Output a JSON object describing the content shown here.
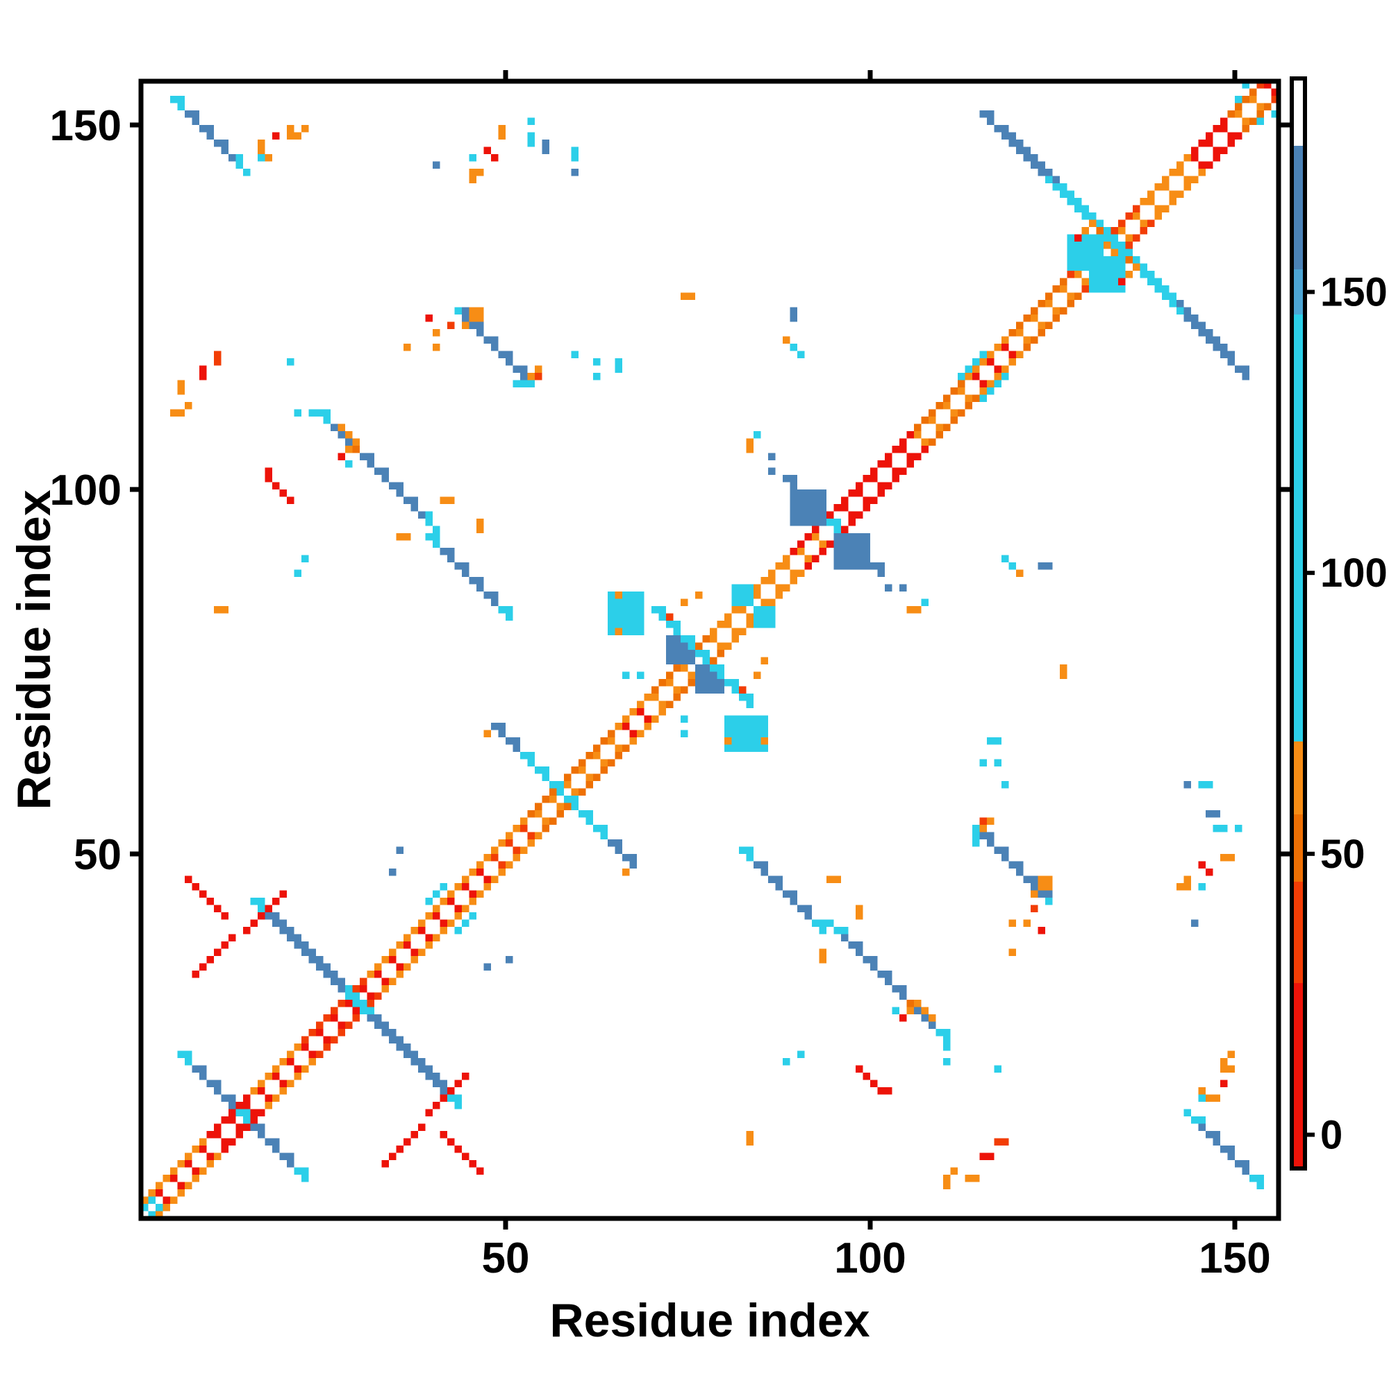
{
  "chart_data": {
    "type": "heatmap",
    "subtype": "protein-residue-contact-map",
    "title": "",
    "xlabel": "Residue index",
    "ylabel": "Residue index",
    "axis_range": [
      0,
      156
    ],
    "x_ticks": [
      50,
      100,
      150
    ],
    "y_ticks": [
      50,
      100,
      150
    ],
    "grid": false,
    "symmetric": true,
    "background": "#ffffff",
    "palette": {
      "R": "#ed1309",
      "RO": "#f23d05",
      "O": "#f78d15",
      "DO": "#ee7004",
      "C": "#2ccfe9",
      "S": "#4da5d4",
      "B": "#4b82b6",
      "W": "#ffffff"
    },
    "colorbar": {
      "range": [
        -6,
        188
      ],
      "ticks": [
        0,
        50,
        100,
        150
      ],
      "segments": [
        {
          "from": -6,
          "to": 27,
          "color": "#ed1309"
        },
        {
          "from": 27,
          "to": 45,
          "color": "#f23d05"
        },
        {
          "from": 45,
          "to": 57,
          "color": "#ee7004"
        },
        {
          "from": 57,
          "to": 70,
          "color": "#f78d15"
        },
        {
          "from": 70,
          "to": 146,
          "color": "#2ccfe9"
        },
        {
          "from": 146,
          "to": 154,
          "color": "#4da5d4"
        },
        {
          "from": 154,
          "to": 176,
          "color": "#4b82b6"
        },
        {
          "from": 176,
          "to": 188,
          "color": "#ffffff"
        }
      ]
    },
    "diagonal_segments": [
      {
        "from": 0,
        "to": 9,
        "inner": "R",
        "outer": "O"
      },
      {
        "from": 9,
        "to": 15,
        "inner": "R",
        "outer": "R"
      },
      {
        "from": 15,
        "to": 22,
        "inner": "R",
        "outer": "O"
      },
      {
        "from": 22,
        "to": 31,
        "inner": "R",
        "outer": "RO"
      },
      {
        "from": 31,
        "to": 47,
        "inner": "R",
        "outer": "O"
      },
      {
        "from": 47,
        "to": 53,
        "inner": "RO",
        "outer": "O"
      },
      {
        "from": 53,
        "to": 65,
        "inner": "O",
        "outer": "DO"
      },
      {
        "from": 65,
        "to": 70,
        "inner": "R",
        "outer": "O"
      },
      {
        "from": 70,
        "to": 78,
        "inner": "O",
        "outer": "DO"
      },
      {
        "from": 78,
        "to": 89,
        "inner": "O",
        "outer": "O"
      },
      {
        "from": 89,
        "to": 95,
        "inner": "O",
        "outer": "R"
      },
      {
        "from": 95,
        "to": 106,
        "inner": "R",
        "outer": "R"
      },
      {
        "from": 106,
        "to": 113,
        "inner": "O",
        "outer": "DO"
      },
      {
        "from": 113,
        "to": 119,
        "inner": "R",
        "outer": "O"
      },
      {
        "from": 119,
        "to": 127,
        "inner": "O",
        "outer": "DO"
      },
      {
        "from": 127,
        "to": 137,
        "inner": "O",
        "outer": "RO"
      },
      {
        "from": 137,
        "to": 144,
        "inner": "O",
        "outer": "O"
      },
      {
        "from": 144,
        "to": 149,
        "inner": "R",
        "outer": "R"
      },
      {
        "from": 149,
        "to": 153,
        "inner": "O",
        "outer": "DO"
      },
      {
        "from": 153,
        "to": 156,
        "inner": "R",
        "outer": "RO"
      }
    ],
    "anti_segments": [
      {
        "i": 4,
        "j": 153,
        "len": 11,
        "body": "B",
        "tips": "C",
        "tip": 2,
        "w": 2
      },
      {
        "i": 43,
        "j": 124,
        "len": 11,
        "body": "B",
        "tips": "C",
        "tip": 1,
        "w": 2
      },
      {
        "i": 24,
        "j": 110,
        "len": 17,
        "body": "B",
        "tips": "C",
        "tip": 2,
        "w": 2
      },
      {
        "i": 39,
        "j": 93,
        "len": 12,
        "body": "B",
        "tips": "C",
        "tip": 2,
        "w": 2
      },
      {
        "i": 5,
        "j": 22,
        "len": 18,
        "body": "B",
        "tips": "C",
        "tip": 2,
        "center": "C",
        "w": 2
      },
      {
        "i": 15,
        "j": 43,
        "len": 29,
        "body": "B",
        "tips": "C",
        "tip": 2,
        "center": "C",
        "w": 2
      },
      {
        "i": 48,
        "j": 67,
        "len": 20,
        "body": "C",
        "tips": "B",
        "tip": 4,
        "w": 2
      },
      {
        "i": 88,
        "j": 101,
        "len": 14,
        "body": "B",
        "tips": "B",
        "tip": 0,
        "center": "C",
        "w": 2
      },
      {
        "i": 70,
        "j": 83,
        "len": 14,
        "body": "C",
        "tips": "C",
        "tip": 0,
        "w": 2
      },
      {
        "i": 118,
        "j": 148,
        "len": 34,
        "body": "C",
        "tips": "B",
        "tip": 9,
        "w": 2
      },
      {
        "i": 6,
        "j": 46,
        "len": 6,
        "body": "R",
        "tips": "R",
        "tip": 0,
        "w": 1
      }
    ],
    "stairs": [
      {
        "i": 7,
        "j": 33,
        "len": 6,
        "color": "R"
      },
      {
        "i": 14,
        "j": 39,
        "len": 6,
        "color": "R"
      }
    ],
    "blobs": [
      {
        "i": 64,
        "j": 80,
        "w": 5,
        "h": 6,
        "color": "C"
      },
      {
        "i": 81,
        "j": 84,
        "w": 3,
        "h": 3,
        "color": "C"
      },
      {
        "i": 72,
        "j": 76,
        "w": 4,
        "h": 4,
        "color": "B"
      },
      {
        "i": 89,
        "j": 95,
        "w": 5,
        "h": 5,
        "color": "B"
      },
      {
        "i": 127,
        "j": 130,
        "w": 5,
        "h": 5,
        "color": "C"
      },
      {
        "i": 44,
        "j": 122,
        "w": 3,
        "h": 3,
        "color": "O"
      }
    ],
    "dots": [
      [
        0,
        1,
        "C"
      ],
      [
        1,
        2,
        "C"
      ],
      [
        150,
        153,
        "C"
      ],
      [
        151,
        155,
        "C"
      ],
      [
        5,
        114,
        "O"
      ],
      [
        5,
        113,
        "O"
      ],
      [
        6,
        111,
        "O"
      ],
      [
        4,
        110,
        "O"
      ],
      [
        5,
        110,
        "O"
      ],
      [
        8,
        116,
        "R"
      ],
      [
        8,
        115,
        "R"
      ],
      [
        10,
        118,
        "RO"
      ],
      [
        10,
        117,
        "RO"
      ],
      [
        20,
        117,
        "C"
      ],
      [
        21,
        110,
        "C"
      ],
      [
        23,
        110,
        "C"
      ],
      [
        16,
        147,
        "O"
      ],
      [
        16,
        146,
        "O"
      ],
      [
        17,
        145,
        "O"
      ],
      [
        16,
        145,
        "C"
      ],
      [
        18,
        148,
        "R"
      ],
      [
        20,
        148,
        "O"
      ],
      [
        21,
        148,
        "O"
      ],
      [
        20,
        149,
        "O"
      ],
      [
        22,
        149,
        "O"
      ],
      [
        36,
        119,
        "O"
      ],
      [
        40,
        119,
        "O"
      ],
      [
        40,
        121,
        "O"
      ],
      [
        39,
        123,
        "R"
      ],
      [
        42,
        122,
        "RO"
      ],
      [
        40,
        144,
        "B"
      ],
      [
        45,
        145,
        "C"
      ],
      [
        45,
        143,
        "O"
      ],
      [
        46,
        143,
        "O"
      ],
      [
        45,
        142,
        "O"
      ],
      [
        47,
        146,
        "R"
      ],
      [
        48,
        145,
        "R"
      ],
      [
        49,
        149,
        "O"
      ],
      [
        49,
        148,
        "O"
      ],
      [
        53,
        147,
        "C"
      ],
      [
        53,
        148,
        "C"
      ],
      [
        53,
        150,
        "C"
      ],
      [
        55,
        147,
        "B"
      ],
      [
        55,
        146,
        "B"
      ],
      [
        59,
        145,
        "C"
      ],
      [
        59,
        146,
        "C"
      ],
      [
        59,
        143,
        "B"
      ],
      [
        53,
        115,
        "O"
      ],
      [
        54,
        116,
        "O"
      ],
      [
        54,
        115,
        "RO"
      ],
      [
        52,
        114,
        "C"
      ],
      [
        51,
        114,
        "C"
      ],
      [
        59,
        118,
        "C"
      ],
      [
        62,
        115,
        "C"
      ],
      [
        62,
        117,
        "C"
      ],
      [
        65,
        116,
        "C"
      ],
      [
        65,
        117,
        "C"
      ],
      [
        74,
        126,
        "O"
      ],
      [
        75,
        126,
        "O"
      ],
      [
        27,
        108,
        "O"
      ],
      [
        28,
        107,
        "O"
      ],
      [
        29,
        106,
        "O"
      ],
      [
        28,
        105,
        "O"
      ],
      [
        29,
        105,
        "DO"
      ],
      [
        27,
        104,
        "R"
      ],
      [
        28,
        103,
        "C"
      ],
      [
        35,
        93,
        "O"
      ],
      [
        36,
        93,
        "O"
      ],
      [
        41,
        98,
        "O"
      ],
      [
        42,
        98,
        "O"
      ],
      [
        17,
        102,
        "R"
      ],
      [
        17,
        101,
        "R"
      ],
      [
        18,
        100,
        "R"
      ],
      [
        19,
        99,
        "R"
      ],
      [
        20,
        98,
        "R"
      ],
      [
        34,
        47,
        "B"
      ],
      [
        35,
        50,
        "B"
      ],
      [
        47,
        66,
        "O"
      ],
      [
        66,
        74,
        "C"
      ],
      [
        68,
        74,
        "C"
      ],
      [
        65,
        85,
        "O"
      ],
      [
        65,
        80,
        "O"
      ],
      [
        74,
        84,
        "O"
      ],
      [
        76,
        85,
        "O"
      ],
      [
        72,
        82,
        "RO"
      ],
      [
        83,
        106,
        "O"
      ],
      [
        83,
        105,
        "O"
      ],
      [
        84,
        107,
        "C"
      ],
      [
        86,
        104,
        "B"
      ],
      [
        86,
        102,
        "B"
      ],
      [
        88,
        120,
        "O"
      ],
      [
        89,
        119,
        "C"
      ],
      [
        90,
        118,
        "C"
      ],
      [
        89,
        123,
        "B"
      ],
      [
        89,
        124,
        "B"
      ],
      [
        46,
        95,
        "O"
      ],
      [
        46,
        94,
        "O"
      ],
      [
        10,
        83,
        "O"
      ],
      [
        11,
        83,
        "O"
      ],
      [
        21,
        88,
        "C"
      ],
      [
        22,
        90,
        "C"
      ],
      [
        112,
        115,
        "C"
      ],
      [
        113,
        116,
        "C"
      ],
      [
        114,
        117,
        "C"
      ],
      [
        115,
        118,
        "C"
      ],
      [
        39,
        43,
        "C"
      ],
      [
        40,
        44,
        "C"
      ],
      [
        41,
        45,
        "C"
      ],
      [
        129,
        135,
        "O"
      ],
      [
        130,
        136,
        "O"
      ],
      [
        128,
        134,
        "R"
      ],
      [
        131,
        135,
        "DO"
      ]
    ]
  }
}
